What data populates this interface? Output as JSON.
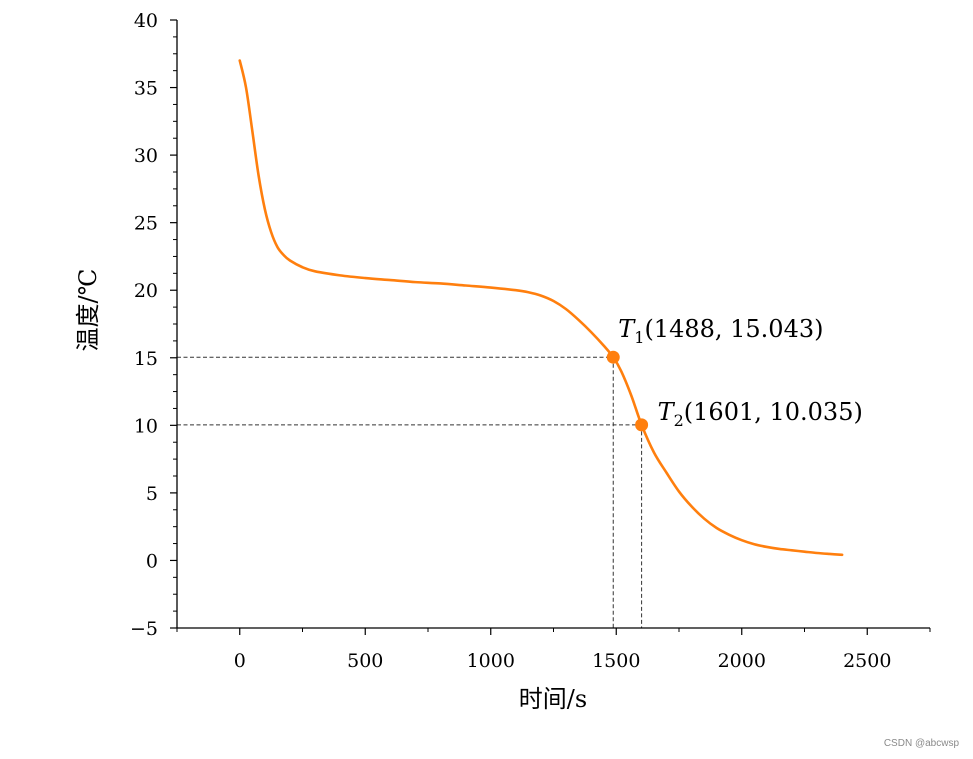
{
  "chart_data": {
    "type": "line",
    "xlabel": "时间/s",
    "ylabel": "温度/℃",
    "xlim": [
      -250,
      2750
    ],
    "ylim": [
      -5,
      40
    ],
    "xticks": [
      0,
      500,
      1000,
      1500,
      2000,
      2500
    ],
    "yticks": [
      -5,
      0,
      5,
      10,
      15,
      20,
      25,
      30,
      35,
      40
    ],
    "xticklabels": [
      "0",
      "500",
      "1000",
      "1500",
      "2000",
      "2500"
    ],
    "yticklabels": [
      "−5",
      "0",
      "5",
      "10",
      "15",
      "20",
      "25",
      "30",
      "35",
      "40"
    ],
    "grid": false,
    "series": [
      {
        "color": "#ff7f0e",
        "x": [
          0,
          25,
          50,
          75,
          100,
          125,
          150,
          175,
          200,
          250,
          300,
          400,
          500,
          600,
          700,
          800,
          900,
          1000,
          1100,
          1150,
          1200,
          1250,
          1300,
          1350,
          1400,
          1450,
          1488,
          1520,
          1560,
          1601,
          1650,
          1700,
          1750,
          1800,
          1850,
          1900,
          1950,
          2000,
          2050,
          2100,
          2150,
          2200,
          2250,
          2300,
          2350,
          2400
        ],
        "y": [
          37.0,
          35.0,
          31.8,
          28.5,
          26.0,
          24.3,
          23.2,
          22.6,
          22.2,
          21.7,
          21.4,
          21.1,
          20.9,
          20.75,
          20.6,
          20.5,
          20.35,
          20.2,
          20.0,
          19.85,
          19.6,
          19.2,
          18.6,
          17.8,
          16.9,
          15.9,
          15.043,
          14.0,
          12.2,
          10.035,
          8.0,
          6.5,
          5.1,
          4.0,
          3.1,
          2.4,
          1.9,
          1.5,
          1.2,
          1.0,
          0.85,
          0.75,
          0.65,
          0.55,
          0.48,
          0.42
        ]
      }
    ],
    "points": [
      {
        "x": 1488,
        "y": 15.043,
        "label_sym": "T",
        "label_sub": "1",
        "label_text": "(1488, 15.043)"
      },
      {
        "x": 1601,
        "y": 10.035,
        "label_sym": "T",
        "label_sub": "2",
        "label_text": "(1601, 10.035)"
      }
    ]
  },
  "watermark": "CSDN @abcwsp"
}
